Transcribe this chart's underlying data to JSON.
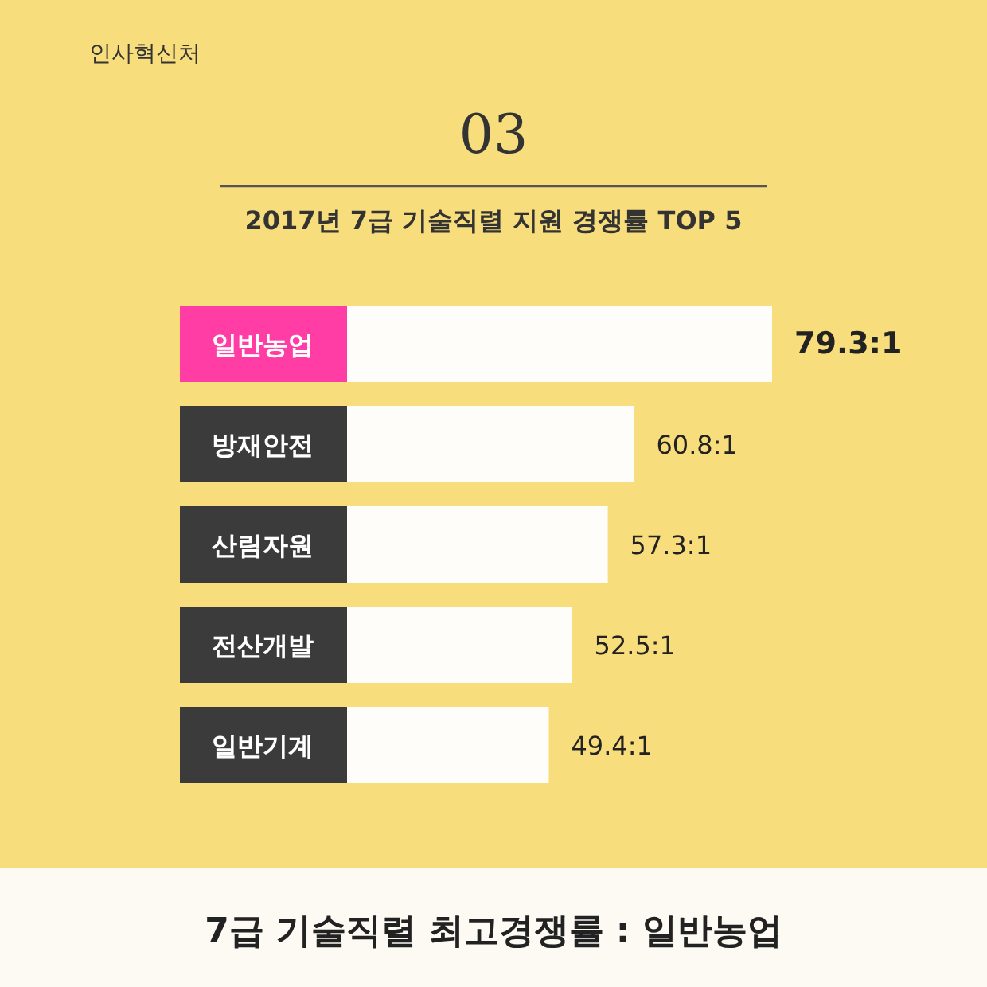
{
  "chart_data": {
    "type": "bar",
    "orientation": "horizontal",
    "title": "03",
    "subtitle": "2017년 7급 기술직렬 지원 경쟁률 TOP 5",
    "categories": [
      "일반농업",
      "방재안전",
      "산림자원",
      "전산개발",
      "일반기계"
    ],
    "values": [
      79.3,
      60.8,
      57.3,
      52.5,
      49.4
    ],
    "value_labels": [
      "79.3:1",
      "60.8:1",
      "57.3:1",
      "52.5:1",
      "49.4:1"
    ],
    "colors": [
      "#fffdf9",
      "#fffdf9",
      "#fffdf9",
      "#fffdf9",
      "#fffdf9"
    ],
    "annotations": [
      "인사혁신처",
      "7급 기술직렬 최고경쟁률 : 일반농업"
    ]
  }
}
